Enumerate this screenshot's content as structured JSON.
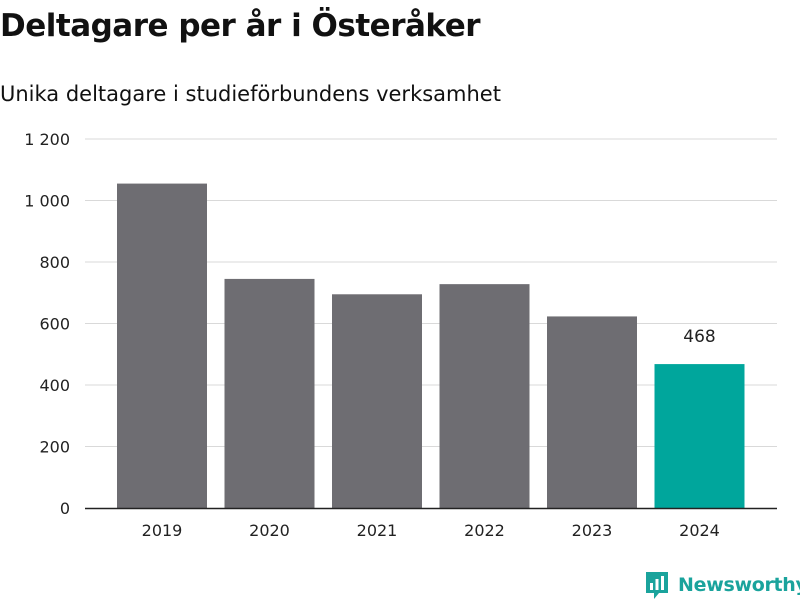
{
  "title": "Deltagare per år i Österåker",
  "subtitle": "Unika deltagare i studieförbundens verksamhet",
  "brand": {
    "name": "Newsworthy",
    "color": "#1aa39c",
    "icon": "newsworthy-logo-icon"
  },
  "chart_data": {
    "type": "bar",
    "categories": [
      "2019",
      "2020",
      "2021",
      "2022",
      "2023",
      "2024"
    ],
    "values": [
      1055,
      745,
      695,
      728,
      623,
      468
    ],
    "colors": [
      "#6e6d72",
      "#6e6d72",
      "#6e6d72",
      "#6e6d72",
      "#6e6d72",
      "#00a69c"
    ],
    "data_labels": [
      {
        "index": 5,
        "text": "468"
      }
    ],
    "y_ticks": [
      0,
      200,
      400,
      600,
      800,
      1000,
      1200
    ],
    "y_tick_labels": [
      "0",
      "200",
      "400",
      "600",
      "800",
      "1 000",
      "1 200"
    ],
    "ylim": [
      0,
      1200
    ],
    "xlabel": "",
    "ylabel": "",
    "grid": true,
    "legend": "none"
  }
}
